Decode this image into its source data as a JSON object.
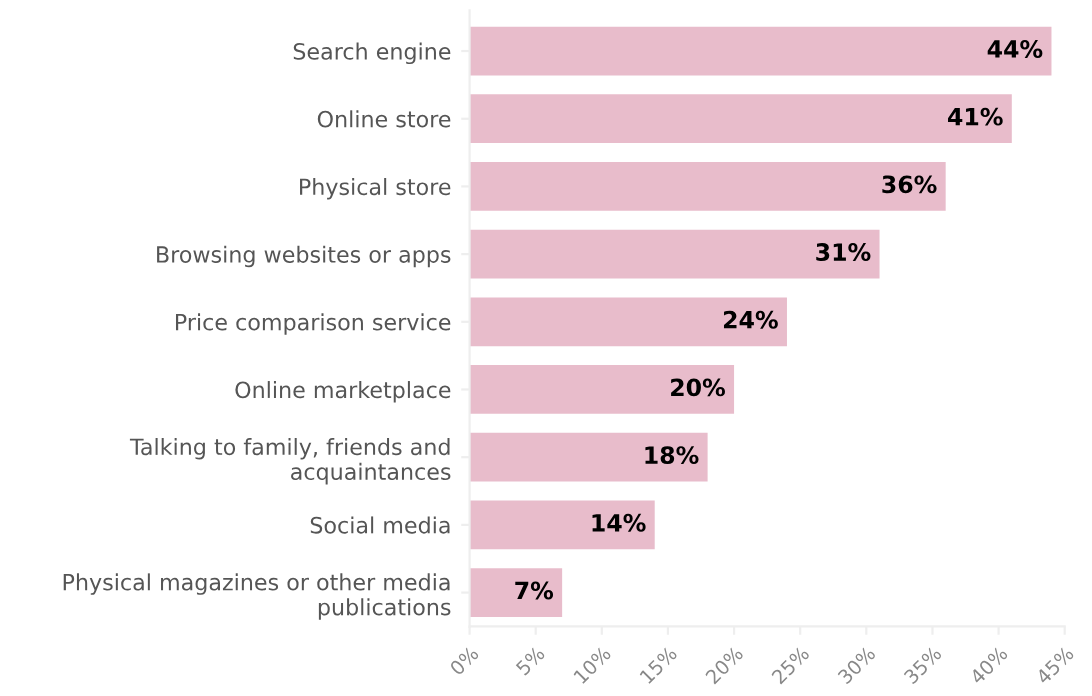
{
  "chart_data": {
    "type": "bar",
    "orientation": "horizontal",
    "categories": [
      "Search engine",
      "Online store",
      "Physical store",
      "Browsing websites or apps",
      "Price comparison service",
      "Online marketplace",
      "Talking to family, friends and\nacquaintances",
      "Social media",
      "Physical magazines or other media\npublications"
    ],
    "values": [
      44,
      41,
      36,
      31,
      24,
      20,
      18,
      14,
      7
    ],
    "value_labels": [
      "44%",
      "41%",
      "36%",
      "31%",
      "24%",
      "20%",
      "18%",
      "14%",
      "7%"
    ],
    "color": "#e8bccb",
    "xlim": [
      0,
      45
    ],
    "xticks": [
      {
        "value": 0,
        "label": "0%"
      },
      {
        "value": 5,
        "label": "5%"
      },
      {
        "value": 10,
        "label": "10%"
      },
      {
        "value": 15,
        "label": "15%"
      },
      {
        "value": 20,
        "label": "20%"
      },
      {
        "value": 25,
        "label": "25%"
      },
      {
        "value": 30,
        "label": "30%"
      },
      {
        "value": 35,
        "label": "35%"
      },
      {
        "value": 40,
        "label": "40%"
      },
      {
        "value": 45,
        "label": "45%"
      }
    ],
    "grid": false,
    "legend": false
  }
}
